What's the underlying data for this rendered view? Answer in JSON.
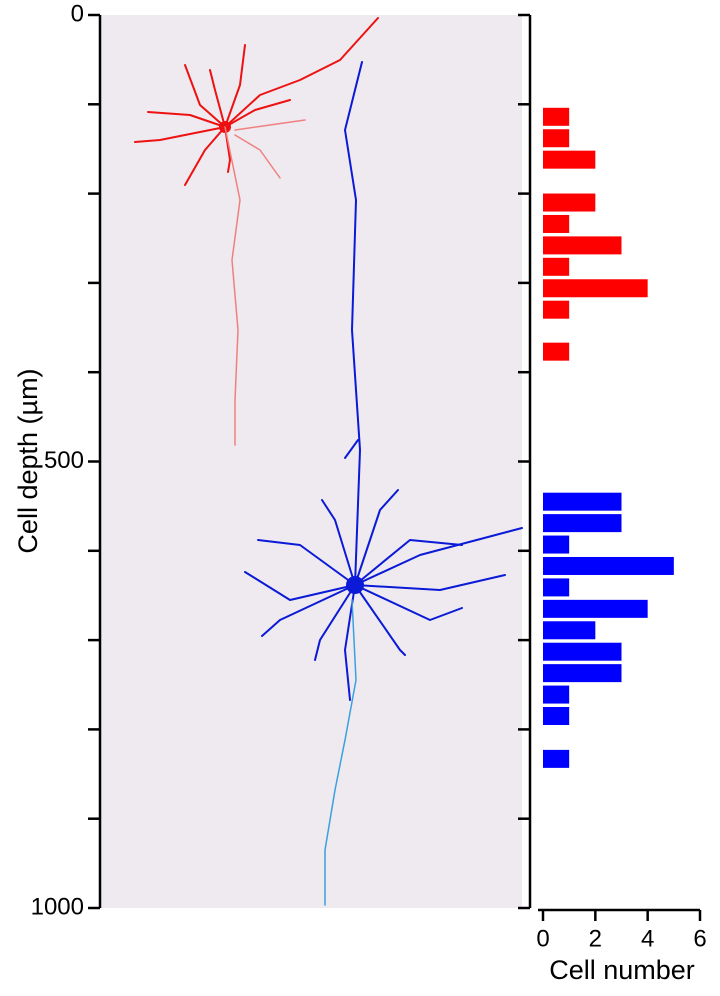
{
  "chart_data": {
    "type": "barh",
    "ylabel": "Cell depth (µm)",
    "xlabel": "Cell number",
    "ylim": [
      0,
      1000
    ],
    "yticks": [
      0,
      500,
      1000
    ],
    "yticks_minor": [
      100,
      200,
      300,
      400,
      600,
      700,
      800,
      900
    ],
    "xlim": [
      0,
      6
    ],
    "xticks": [
      0,
      2,
      4,
      6
    ],
    "y": [
      114,
      138,
      162,
      210,
      234,
      258,
      282,
      306,
      330,
      377,
      545,
      569,
      593,
      617,
      641,
      665,
      689,
      713,
      737,
      761,
      785,
      833
    ],
    "series": [
      {
        "color": "#ff0000",
        "values": [
          1,
          1,
          2,
          2,
          1,
          3,
          1,
          4,
          1,
          1,
          null,
          null,
          null,
          null,
          null,
          null,
          null,
          null,
          null,
          null,
          null,
          null
        ]
      },
      {
        "color": "#0000ff",
        "values": [
          null,
          null,
          null,
          null,
          null,
          null,
          null,
          null,
          null,
          null,
          3,
          3,
          1,
          5,
          1,
          4,
          2,
          3,
          3,
          1,
          1,
          1
        ]
      }
    ]
  }
}
